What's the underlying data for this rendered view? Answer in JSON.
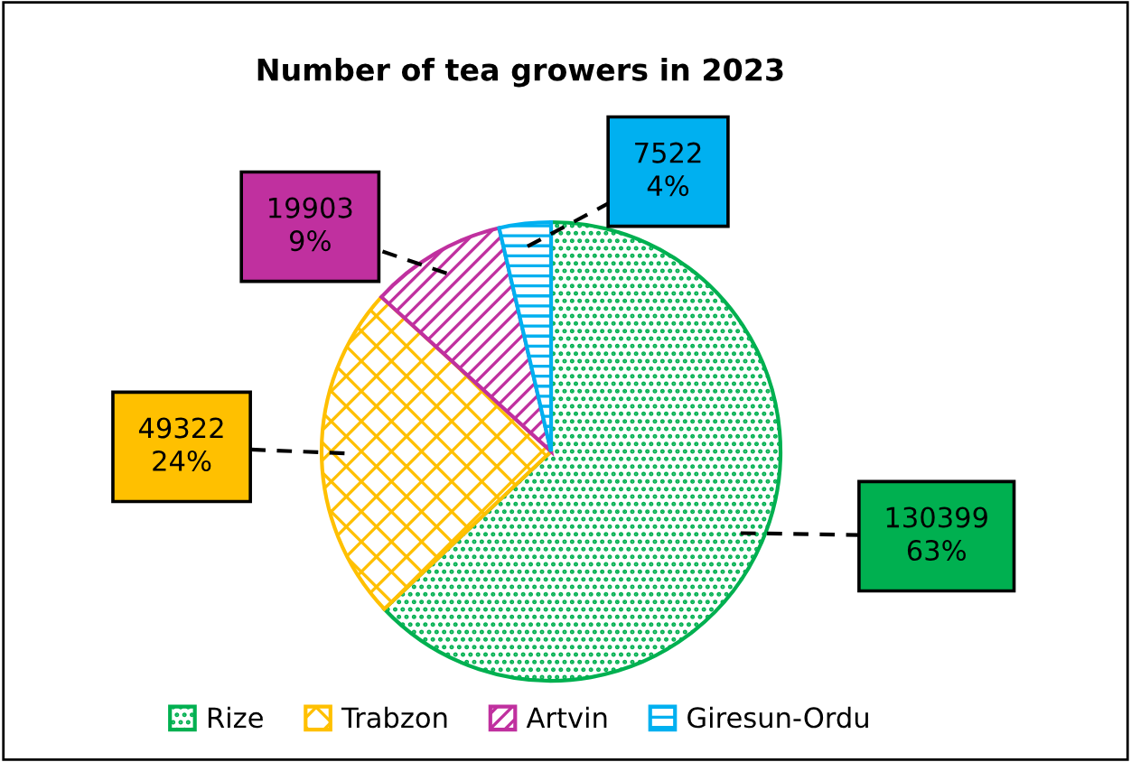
{
  "chart_data": {
    "type": "pie",
    "title": "Number of tea growers in 2023",
    "categories": [
      "Rize",
      "Trabzon",
      "Artvin",
      "Giresun-Ordu"
    ],
    "values": [
      130399,
      49322,
      19903,
      7522
    ],
    "colors": [
      "#00b050",
      "#ffc000",
      "#c0309f",
      "#00b0f0"
    ],
    "value_labels": [
      "130399\n63%",
      "49322\n24%",
      "19903\n9%",
      "7522\n4%"
    ],
    "legend": "bottom"
  }
}
